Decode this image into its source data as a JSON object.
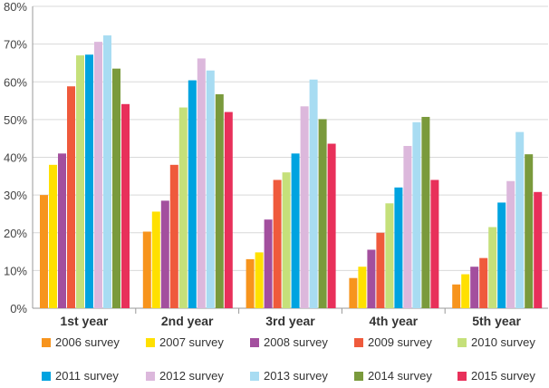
{
  "chart_data": {
    "type": "bar",
    "title": "",
    "xlabel": "",
    "ylabel": "",
    "ylim": [
      0,
      80
    ],
    "yticks": [
      "0%",
      "10%",
      "20%",
      "30%",
      "40%",
      "50%",
      "60%",
      "70%",
      "80%"
    ],
    "grid": true,
    "legend_position": "bottom",
    "categories": [
      "1st year",
      "2nd year",
      "3rd year",
      "4th year",
      "5th year"
    ],
    "series": [
      {
        "name": "2006 survey",
        "color": "#f7941d",
        "values": [
          30,
          20.3,
          13,
          8,
          6.3
        ]
      },
      {
        "name": "2007 survey",
        "color": "#ffe000",
        "values": [
          38,
          25.6,
          14.8,
          11,
          9
        ]
      },
      {
        "name": "2008 survey",
        "color": "#a34f9e",
        "values": [
          41,
          28.5,
          23.5,
          15.5,
          11
        ]
      },
      {
        "name": "2009 survey",
        "color": "#ef5a3c",
        "values": [
          58.8,
          38,
          34,
          20,
          13.3
        ]
      },
      {
        "name": "2010 survey",
        "color": "#c5e07a",
        "values": [
          67,
          53.2,
          36,
          27.8,
          21.5
        ]
      },
      {
        "name": "2011 survey",
        "color": "#00a3e0",
        "values": [
          67.2,
          60.4,
          41,
          32,
          28
        ]
      },
      {
        "name": "2012 survey",
        "color": "#dcb8dc",
        "values": [
          70.6,
          66.2,
          53.5,
          43,
          33.7
        ]
      },
      {
        "name": "2013 survey",
        "color": "#a8dcf2",
        "values": [
          72.3,
          63,
          60.6,
          49.3,
          46.7
        ]
      },
      {
        "name": "2014 survey",
        "color": "#7a9a3c",
        "values": [
          63.5,
          56.7,
          50.1,
          50.7,
          40.8
        ]
      },
      {
        "name": "2015 survey",
        "color": "#e8305a",
        "values": [
          54.1,
          52,
          43.6,
          34,
          30.8
        ]
      }
    ]
  }
}
